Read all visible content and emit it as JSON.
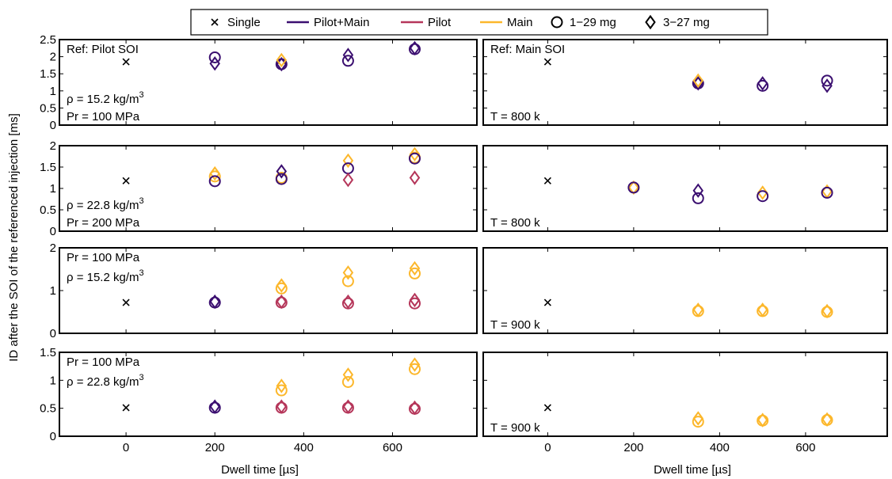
{
  "colors": {
    "single": "#000000",
    "pilot_main": "#3b0f70",
    "pilot": "#b5365a",
    "main": "#fcb72b"
  },
  "legend": [
    {
      "label": "Single",
      "kind": "marker",
      "marker": "x",
      "color_key": "single"
    },
    {
      "label": "Pilot+Main",
      "kind": "line",
      "color_key": "pilot_main"
    },
    {
      "label": "Pilot",
      "kind": "line",
      "color_key": "pilot"
    },
    {
      "label": "Main",
      "kind": "line",
      "color_key": "main"
    },
    {
      "label": "1−29 mg",
      "kind": "marker",
      "marker": "circle",
      "color_key": "single"
    },
    {
      "label": "3−27 mg",
      "kind": "marker",
      "marker": "diamond",
      "color_key": "single"
    }
  ],
  "ylabel": "ID after the SOI of the referenced injection [ms]",
  "xlabel": "Dwell time [µs]",
  "x_ticks": [
    0,
    200,
    400,
    600
  ],
  "xlim": [
    -150,
    790
  ],
  "chart_data": {
    "type": "scatter",
    "panels": [
      {
        "id": "r1-left",
        "row": 0,
        "col": 0,
        "ylim": [
          0,
          2.5
        ],
        "yticks": [
          "0",
          "0.5",
          "1",
          "1.5",
          "2",
          "2.5"
        ],
        "ytick_values": [
          0,
          0.5,
          1,
          1.5,
          2,
          2.5
        ],
        "annotations": [
          {
            "text": "Ref: Pilot SOI",
            "pos": "top-left"
          },
          {
            "text": "ρ = 15.2 kg/m",
            "sup": "3",
            "pos": "mid-left"
          },
          {
            "text": "Pr = 100 MPa",
            "pos": "bottom-left"
          }
        ],
        "series": [
          {
            "group": "single",
            "marker": "x",
            "x": [
              0
            ],
            "y": [
              1.85
            ]
          },
          {
            "group": "pilot_main",
            "marker": "circle",
            "x": [
              200,
              350,
              500,
              650
            ],
            "y": [
              1.98,
              1.78,
              1.88,
              2.22
            ]
          },
          {
            "group": "pilot_main",
            "marker": "diamond",
            "x": [
              200,
              350,
              500,
              650
            ],
            "y": [
              1.8,
              1.78,
              2.05,
              2.25
            ]
          },
          {
            "group": "main",
            "marker": "diamond",
            "x": [
              350
            ],
            "y": [
              1.9
            ]
          }
        ]
      },
      {
        "id": "r1-right",
        "row": 0,
        "col": 1,
        "ylim": [
          0,
          2.5
        ],
        "yticks": [],
        "ytick_values": [
          0,
          0.5,
          1,
          1.5,
          2,
          2.5
        ],
        "annotations": [
          {
            "text": "Ref: Main SOI",
            "pos": "top-left"
          },
          {
            "text": "T = 800 k",
            "pos": "bottom-left"
          }
        ],
        "series": [
          {
            "group": "single",
            "marker": "x",
            "x": [
              0
            ],
            "y": [
              1.85
            ]
          },
          {
            "group": "pilot_main",
            "marker": "circle",
            "x": [
              350,
              500,
              650
            ],
            "y": [
              1.22,
              1.15,
              1.3
            ]
          },
          {
            "group": "pilot_main",
            "marker": "diamond",
            "x": [
              350,
              500,
              650
            ],
            "y": [
              1.22,
              1.22,
              1.15
            ]
          },
          {
            "group": "main",
            "marker": "diamond",
            "x": [
              350
            ],
            "y": [
              1.3
            ]
          }
        ]
      },
      {
        "id": "r2-left",
        "row": 1,
        "col": 0,
        "ylim": [
          0,
          2
        ],
        "yticks": [
          "0",
          "0.5",
          "1",
          "1.5",
          "2"
        ],
        "ytick_values": [
          0,
          0.5,
          1,
          1.5,
          2
        ],
        "annotations": [
          {
            "text": "ρ = 22.8 kg/m",
            "sup": "3",
            "pos": "mid-left"
          },
          {
            "text": "Pr = 200 MPa",
            "pos": "bottom-left"
          }
        ],
        "series": [
          {
            "group": "single",
            "marker": "x",
            "x": [
              0
            ],
            "y": [
              1.18
            ]
          },
          {
            "group": "main",
            "marker": "diamond",
            "x": [
              200,
              500,
              650
            ],
            "y": [
              1.35,
              1.65,
              1.8
            ]
          },
          {
            "group": "main",
            "marker": "circle",
            "x": [
              200,
              350,
              650
            ],
            "y": [
              1.28,
              1.25,
              1.72
            ]
          },
          {
            "group": "pilot_main",
            "marker": "circle",
            "x": [
              200,
              350,
              500,
              650
            ],
            "y": [
              1.17,
              1.22,
              1.47,
              1.7
            ]
          },
          {
            "group": "pilot_main",
            "marker": "diamond",
            "x": [
              350
            ],
            "y": [
              1.4
            ]
          },
          {
            "group": "pilot",
            "marker": "diamond",
            "x": [
              500,
              650
            ],
            "y": [
              1.2,
              1.25
            ]
          }
        ]
      },
      {
        "id": "r2-right",
        "row": 1,
        "col": 1,
        "ylim": [
          0,
          2
        ],
        "yticks": [],
        "ytick_values": [
          0,
          0.5,
          1,
          1.5,
          2
        ],
        "annotations": [
          {
            "text": "T = 800 k",
            "pos": "bottom-left"
          }
        ],
        "series": [
          {
            "group": "single",
            "marker": "x",
            "x": [
              0
            ],
            "y": [
              1.18
            ]
          },
          {
            "group": "main",
            "marker": "diamond",
            "x": [
              200,
              500,
              650
            ],
            "y": [
              1.02,
              0.9,
              0.93
            ]
          },
          {
            "group": "pilot_main",
            "marker": "circle",
            "x": [
              200,
              350,
              500,
              650
            ],
            "y": [
              1.02,
              0.77,
              0.82,
              0.9
            ]
          },
          {
            "group": "pilot_main",
            "marker": "diamond",
            "x": [
              350
            ],
            "y": [
              0.95
            ]
          }
        ]
      },
      {
        "id": "r3-left",
        "row": 2,
        "col": 0,
        "ylim": [
          0,
          2
        ],
        "yticks": [
          "0",
          "1",
          "2"
        ],
        "ytick_values": [
          0,
          1,
          2
        ],
        "annotations": [
          {
            "text": "Pr = 100 MPa",
            "pos": "top-left"
          },
          {
            "text": "ρ = 15.2 kg/m",
            "sup": "3",
            "pos": "second-left"
          }
        ],
        "series": [
          {
            "group": "single",
            "marker": "x",
            "x": [
              0
            ],
            "y": [
              0.72
            ]
          },
          {
            "group": "pilot_main",
            "marker": "circle",
            "x": [
              200
            ],
            "y": [
              0.72
            ]
          },
          {
            "group": "pilot_main",
            "marker": "diamond",
            "x": [
              200
            ],
            "y": [
              0.74
            ]
          },
          {
            "group": "pilot",
            "marker": "circle",
            "x": [
              350,
              500,
              650
            ],
            "y": [
              0.72,
              0.7,
              0.7
            ]
          },
          {
            "group": "pilot",
            "marker": "diamond",
            "x": [
              350,
              500,
              650
            ],
            "y": [
              0.74,
              0.74,
              0.78
            ]
          },
          {
            "group": "main",
            "marker": "circle",
            "x": [
              350,
              500,
              650
            ],
            "y": [
              1.05,
              1.22,
              1.4
            ]
          },
          {
            "group": "main",
            "marker": "diamond",
            "x": [
              350,
              500,
              650
            ],
            "y": [
              1.12,
              1.42,
              1.52
            ]
          }
        ]
      },
      {
        "id": "r3-right",
        "row": 2,
        "col": 1,
        "ylim": [
          0,
          2
        ],
        "yticks": [],
        "ytick_values": [
          0,
          1,
          2
        ],
        "annotations": [
          {
            "text": "T = 900 k",
            "pos": "bottom-left"
          }
        ],
        "series": [
          {
            "group": "single",
            "marker": "x",
            "x": [
              0
            ],
            "y": [
              0.72
            ]
          },
          {
            "group": "main",
            "marker": "circle",
            "x": [
              350,
              500,
              650
            ],
            "y": [
              0.52,
              0.52,
              0.5
            ]
          },
          {
            "group": "main",
            "marker": "diamond",
            "x": [
              350,
              500,
              650
            ],
            "y": [
              0.55,
              0.55,
              0.52
            ]
          }
        ]
      },
      {
        "id": "r4-left",
        "row": 3,
        "col": 0,
        "ylim": [
          0,
          1.5
        ],
        "yticks": [
          "0",
          "0.5",
          "1",
          "1.5"
        ],
        "ytick_values": [
          0,
          0.5,
          1,
          1.5
        ],
        "annotations": [
          {
            "text": "Pr = 100 MPa",
            "pos": "top-left"
          },
          {
            "text": "ρ = 22.8 kg/m",
            "sup": "3",
            "pos": "second-left"
          }
        ],
        "series": [
          {
            "group": "single",
            "marker": "x",
            "x": [
              0
            ],
            "y": [
              0.51
            ]
          },
          {
            "group": "pilot_main",
            "marker": "circle",
            "x": [
              200
            ],
            "y": [
              0.51
            ]
          },
          {
            "group": "pilot_main",
            "marker": "diamond",
            "x": [
              200
            ],
            "y": [
              0.53
            ]
          },
          {
            "group": "pilot",
            "marker": "circle",
            "x": [
              350,
              500,
              650
            ],
            "y": [
              0.51,
              0.51,
              0.49
            ]
          },
          {
            "group": "pilot",
            "marker": "diamond",
            "x": [
              350,
              500,
              650
            ],
            "y": [
              0.53,
              0.53,
              0.51
            ]
          },
          {
            "group": "main",
            "marker": "circle",
            "x": [
              350,
              500,
              650
            ],
            "y": [
              0.82,
              0.97,
              1.2
            ]
          },
          {
            "group": "main",
            "marker": "diamond",
            "x": [
              350,
              500,
              650
            ],
            "y": [
              0.9,
              1.1,
              1.28
            ]
          }
        ]
      },
      {
        "id": "r4-right",
        "row": 3,
        "col": 1,
        "ylim": [
          0,
          1.5
        ],
        "yticks": [],
        "ytick_values": [
          0,
          0.5,
          1,
          1.5
        ],
        "annotations": [
          {
            "text": "T = 900 k",
            "pos": "bottom-left"
          }
        ],
        "series": [
          {
            "group": "single",
            "marker": "x",
            "x": [
              0
            ],
            "y": [
              0.51
            ]
          },
          {
            "group": "main",
            "marker": "circle",
            "x": [
              350,
              500,
              650
            ],
            "y": [
              0.26,
              0.28,
              0.29
            ]
          },
          {
            "group": "main",
            "marker": "diamond",
            "x": [
              350,
              500,
              650
            ],
            "y": [
              0.32,
              0.29,
              0.3
            ]
          }
        ]
      }
    ]
  }
}
